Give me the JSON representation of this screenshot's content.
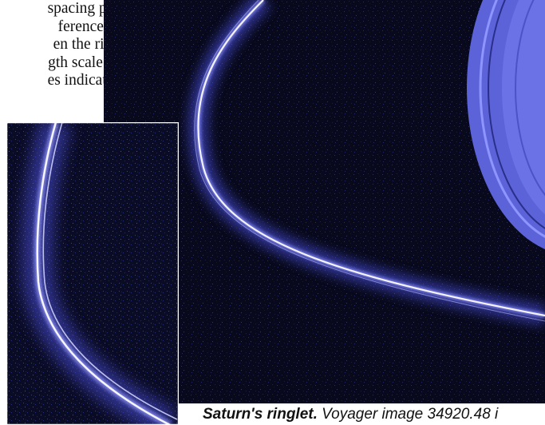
{
  "body_text": {
    "lines": [
      "spacing pro",
      "ference in",
      "en the ring",
      "gth scale of",
      "es indicates"
    ]
  },
  "caption": {
    "title": "Saturn's ringlet.",
    "text": " Voyager image 34920.48 i"
  },
  "colors": {
    "sky": "#07081a",
    "ring_glow": "#5b5ff0",
    "ring_core": "#f4f4ff",
    "planet_disk": "#6a72e6"
  }
}
